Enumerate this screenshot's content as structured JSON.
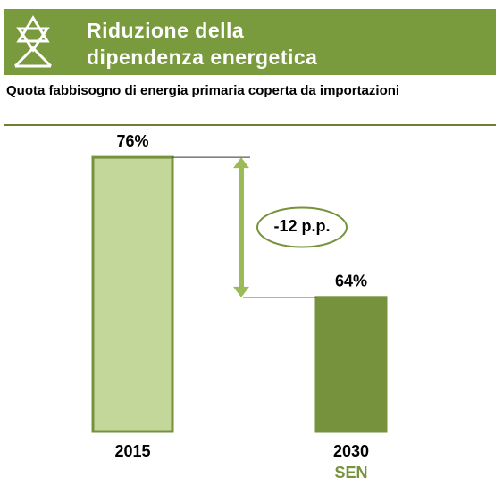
{
  "chart_data": {
    "type": "bar",
    "title": [
      "Riduzione della",
      "dipendenza energetica"
    ],
    "subtitle": "Quota fabbisogno di energia primaria coperta da importazioni",
    "categories": [
      "2015",
      "2030"
    ],
    "category_sublabels": [
      null,
      "SEN"
    ],
    "values": [
      76,
      64
    ],
    "value_labels": [
      "76%",
      "64%"
    ],
    "colors": [
      "#c4d79b",
      "#76923c"
    ],
    "annotation": "-12 p.p.",
    "ylim": [
      52.5,
      78
    ]
  }
}
